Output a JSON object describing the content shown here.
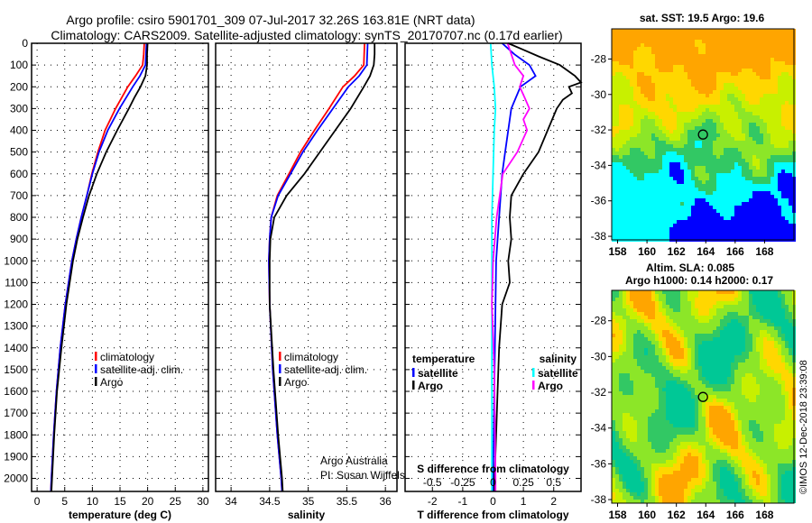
{
  "title_line1": "Argo profile: csiro 5901701_309 07-Jul-2017 32.26S 163.81E (NRT data)",
  "title_line2": "Climatology: CARS2009. Satellite-adjusted climatology: synTS_20170707.nc (0.17d earlier)",
  "credit": "Argo Australia",
  "pi": "PI: Susan Wijffels",
  "copyright": "©IMOS 12-Dec-2018 23:39:08",
  "colors": {
    "climatology": "#ff0000",
    "satellite": "#0000ff",
    "argo": "#000000",
    "sal_satellite": "#00ffff",
    "sal_argo": "#ff00ff"
  },
  "chart_data": [
    {
      "type": "line",
      "xlabel": "temperature (deg C)",
      "ylabel": "",
      "xlim": [
        -1,
        31
      ],
      "ylim": [
        2060,
        0
      ],
      "xticks": [
        0,
        5,
        10,
        15,
        20,
        25,
        30
      ],
      "yticks": [
        0,
        100,
        200,
        300,
        400,
        500,
        600,
        700,
        800,
        900,
        1000,
        1100,
        1200,
        1300,
        1400,
        1500,
        1600,
        1700,
        1800,
        1900,
        2000
      ],
      "legend": [
        "climatology",
        "satellite-adj. clim.",
        "Argo"
      ],
      "series": [
        {
          "name": "climatology",
          "depth": [
            0,
            50,
            100,
            150,
            200,
            300,
            400,
            500,
            600,
            700,
            800,
            900,
            1000,
            1200,
            1400,
            1600,
            1800,
            2000,
            2060
          ],
          "values": [
            19.4,
            19.3,
            19.1,
            17.8,
            16.4,
            14.2,
            12.3,
            11.0,
            9.9,
            9.0,
            8.0,
            7.1,
            6.3,
            5.1,
            4.2,
            3.5,
            3.0,
            2.6,
            2.5
          ]
        },
        {
          "name": "satellite-adj. clim.",
          "depth": [
            0,
            50,
            100,
            150,
            200,
            300,
            400,
            500,
            600,
            700,
            800,
            900,
            1000,
            1200,
            1400,
            1600,
            1800,
            2000,
            2060
          ],
          "values": [
            19.8,
            19.7,
            19.6,
            18.6,
            17.3,
            14.9,
            12.8,
            11.2,
            10.0,
            9.0,
            8.0,
            7.1,
            6.3,
            5.1,
            4.2,
            3.5,
            3.0,
            2.6,
            2.5
          ]
        },
        {
          "name": "Argo",
          "depth": [
            0,
            50,
            100,
            150,
            200,
            250,
            300,
            400,
            500,
            600,
            700,
            800,
            900,
            1000,
            1200,
            1400,
            1600,
            1800,
            2000,
            2060
          ],
          "values": [
            20.0,
            19.9,
            19.9,
            19.6,
            18.7,
            17.6,
            16.6,
            14.5,
            12.5,
            10.8,
            9.4,
            8.3,
            7.3,
            6.5,
            5.3,
            4.4,
            3.6,
            3.1,
            2.7,
            2.6
          ]
        }
      ]
    },
    {
      "type": "line",
      "xlabel": "salinity",
      "xlim": [
        33.8,
        36.15
      ],
      "ylim": [
        2060,
        0
      ],
      "xticks": [
        34,
        34.5,
        35,
        35.5,
        36
      ],
      "xticklabels": [
        "34",
        "34.5",
        "35",
        "35.5",
        "36"
      ],
      "legend": [
        "climatology",
        "satellite-adj. clim.",
        "Argo"
      ],
      "series": [
        {
          "name": "climatology",
          "depth": [
            0,
            100,
            150,
            200,
            300,
            400,
            500,
            600,
            700,
            800,
            900,
            1000,
            1200,
            1500,
            1800,
            2000,
            2060
          ],
          "values": [
            35.73,
            35.72,
            35.6,
            35.45,
            35.27,
            35.08,
            34.9,
            34.75,
            34.6,
            34.52,
            34.5,
            34.49,
            34.5,
            34.54,
            34.6,
            34.65,
            34.66
          ]
        },
        {
          "name": "satellite-adj. clim.",
          "depth": [
            0,
            100,
            150,
            200,
            300,
            400,
            500,
            600,
            700,
            800,
            900,
            1000,
            1200,
            1500,
            1800,
            2000,
            2060
          ],
          "values": [
            35.77,
            35.76,
            35.66,
            35.52,
            35.32,
            35.12,
            34.93,
            34.77,
            34.61,
            34.52,
            34.5,
            34.49,
            34.5,
            34.54,
            34.6,
            34.65,
            34.66
          ]
        },
        {
          "name": "Argo",
          "depth": [
            0,
            50,
            100,
            150,
            200,
            300,
            400,
            500,
            600,
            700,
            800,
            900,
            1000,
            1200,
            1500,
            1800,
            2000,
            2060
          ],
          "values": [
            35.86,
            35.86,
            35.85,
            35.8,
            35.72,
            35.55,
            35.35,
            35.15,
            34.95,
            34.72,
            34.56,
            34.51,
            34.5,
            34.5,
            34.55,
            34.61,
            34.66,
            34.67
          ]
        }
      ]
    },
    {
      "type": "line",
      "xlabel": "T difference from climatology",
      "x2label": "S difference from climatology",
      "xlim": [
        -2.9,
        2.9
      ],
      "ylim": [
        2060,
        0
      ],
      "xticks": [
        -2,
        -1,
        0,
        1,
        2
      ],
      "x2ticks": [
        -0.5,
        -0.25,
        0,
        0.25,
        0.5
      ],
      "x2ticklabels": [
        "-0.5",
        "-0.25",
        "0",
        "0.25",
        "0.5"
      ],
      "legend_temperature_title": "temperature",
      "legend_salinity_title": "salinity",
      "legend": [
        "satellite",
        "Argo"
      ],
      "series": [
        {
          "name": "temperature satellite",
          "depth": [
            0,
            50,
            100,
            150,
            200,
            300,
            400,
            500,
            600,
            800,
            1000,
            1500,
            2000,
            2060
          ],
          "values": [
            0.3,
            0.7,
            1.2,
            1.4,
            0.9,
            0.6,
            0.5,
            0.4,
            0.3,
            0.2,
            0.1,
            0.05,
            0.0,
            0.0
          ]
        },
        {
          "name": "temperature Argo",
          "depth": [
            0,
            30,
            60,
            100,
            150,
            180,
            200,
            230,
            260,
            300,
            400,
            500,
            600,
            700,
            800,
            900,
            1000,
            1100,
            1200,
            1400,
            1600,
            1800,
            2000,
            2060
          ],
          "values": [
            0.5,
            1.0,
            1.5,
            2.2,
            2.7,
            2.9,
            2.5,
            2.6,
            2.3,
            2.1,
            1.8,
            1.5,
            1.0,
            0.6,
            0.55,
            0.6,
            0.5,
            0.55,
            0.3,
            0.2,
            0.15,
            0.1,
            0.05,
            0.05
          ]
        },
        {
          "name": "salinity satellite",
          "depth": [
            0,
            100,
            200,
            300,
            400,
            600,
            800,
            1000,
            1500,
            2000,
            2060
          ],
          "values": [
            -0.02,
            -0.01,
            0.01,
            0.02,
            0.01,
            0.0,
            -0.01,
            -0.01,
            -0.01,
            -0.01,
            -0.01
          ]
        },
        {
          "name": "salinity Argo",
          "depth": [
            0,
            50,
            100,
            150,
            200,
            250,
            300,
            350,
            400,
            500,
            600,
            800,
            1000,
            1200,
            1500,
            2000,
            2060
          ],
          "values": [
            0.12,
            0.15,
            0.18,
            0.25,
            0.22,
            0.26,
            0.3,
            0.25,
            0.28,
            0.2,
            0.08,
            0.03,
            0.0,
            -0.01,
            0.01,
            0.02,
            0.02
          ]
        }
      ]
    },
    {
      "type": "heatmap",
      "title": "sat. SST: 19.5 Argo: 19.6",
      "xlim": [
        157.6,
        170
      ],
      "ylim": [
        -38.2,
        -26.3
      ],
      "xticks": [
        158,
        160,
        162,
        164,
        166,
        168
      ],
      "yticks": [
        -28,
        -30,
        -32,
        -34,
        -36,
        -38
      ],
      "marker": {
        "lon": 163.81,
        "lat": -32.26
      }
    },
    {
      "type": "heatmap",
      "title": "Altim. SLA: 0.085",
      "subtitle": "Argo h1000: 0.14 h2000: 0.17",
      "xlim": [
        157.6,
        170
      ],
      "ylim": [
        -38.2,
        -26.3
      ],
      "xticks": [
        158,
        160,
        162,
        164,
        166,
        168
      ],
      "yticks": [
        -28,
        -30,
        -32,
        -34,
        -36,
        -38
      ],
      "marker": {
        "lon": 163.81,
        "lat": -32.26
      }
    }
  ]
}
